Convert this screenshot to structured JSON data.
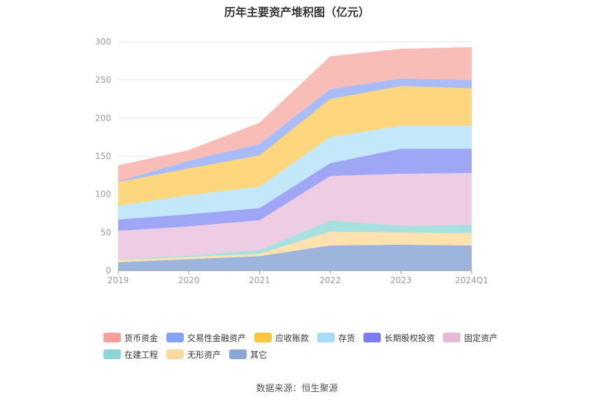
{
  "chart_data": {
    "type": "area",
    "stacked": true,
    "title": "历年主要资产堆积图（亿元）",
    "categories": [
      "2019",
      "2020",
      "2021",
      "2022",
      "2023",
      "2024Q1"
    ],
    "y_ticks": [
      "0",
      "50",
      "100",
      "150",
      "200",
      "250",
      "300"
    ],
    "ylim": [
      0,
      300
    ],
    "grid": true,
    "legend_position": "bottom",
    "series": [
      {
        "name": "其它",
        "color": "#9db4dc",
        "values": [
          11,
          15,
          19,
          33,
          34,
          33
        ]
      },
      {
        "name": "无形资产",
        "color": "#fde2b0",
        "values": [
          3,
          3,
          3,
          18,
          16,
          16
        ]
      },
      {
        "name": "在建工程",
        "color": "#a8e0e0",
        "values": [
          1,
          2,
          5,
          15,
          9,
          11
        ]
      },
      {
        "name": "固定资产",
        "color": "#edcce4",
        "values": [
          37,
          38,
          39,
          58,
          68,
          68
        ]
      },
      {
        "name": "长期股权投资",
        "color": "#9ea6f5",
        "values": [
          15,
          16,
          16,
          17,
          33,
          32
        ]
      },
      {
        "name": "存货",
        "color": "#c2e8fa",
        "values": [
          18,
          25,
          28,
          34,
          30,
          30
        ]
      },
      {
        "name": "应收账款",
        "color": "#fdd67e",
        "values": [
          31,
          35,
          41,
          50,
          52,
          49
        ]
      },
      {
        "name": "交易性金融资产",
        "color": "#a8bcf8",
        "values": [
          1,
          10,
          15,
          13,
          10,
          11
        ]
      },
      {
        "name": "货币资金",
        "color": "#f9bdb8",
        "values": [
          21,
          14,
          28,
          43,
          39,
          43
        ]
      }
    ],
    "legend_order": [
      "货币资金",
      "交易性金融资产",
      "应收账款",
      "存货",
      "长期股权投资",
      "固定资产",
      "在建工程",
      "无形资产",
      "其它"
    ],
    "legend_colors": {
      "货币资金": "#f5a19a",
      "交易性金融资产": "#85a3f5",
      "应收账款": "#fbc63f",
      "存货": "#a6dcf7",
      "长期股权投资": "#7a7cef",
      "固定资产": "#e6b8d8",
      "在建工程": "#8bd6d8",
      "无形资产": "#fdd9a0",
      "其它": "#8aa8d6"
    }
  },
  "source": "数据来源：恒生聚源"
}
